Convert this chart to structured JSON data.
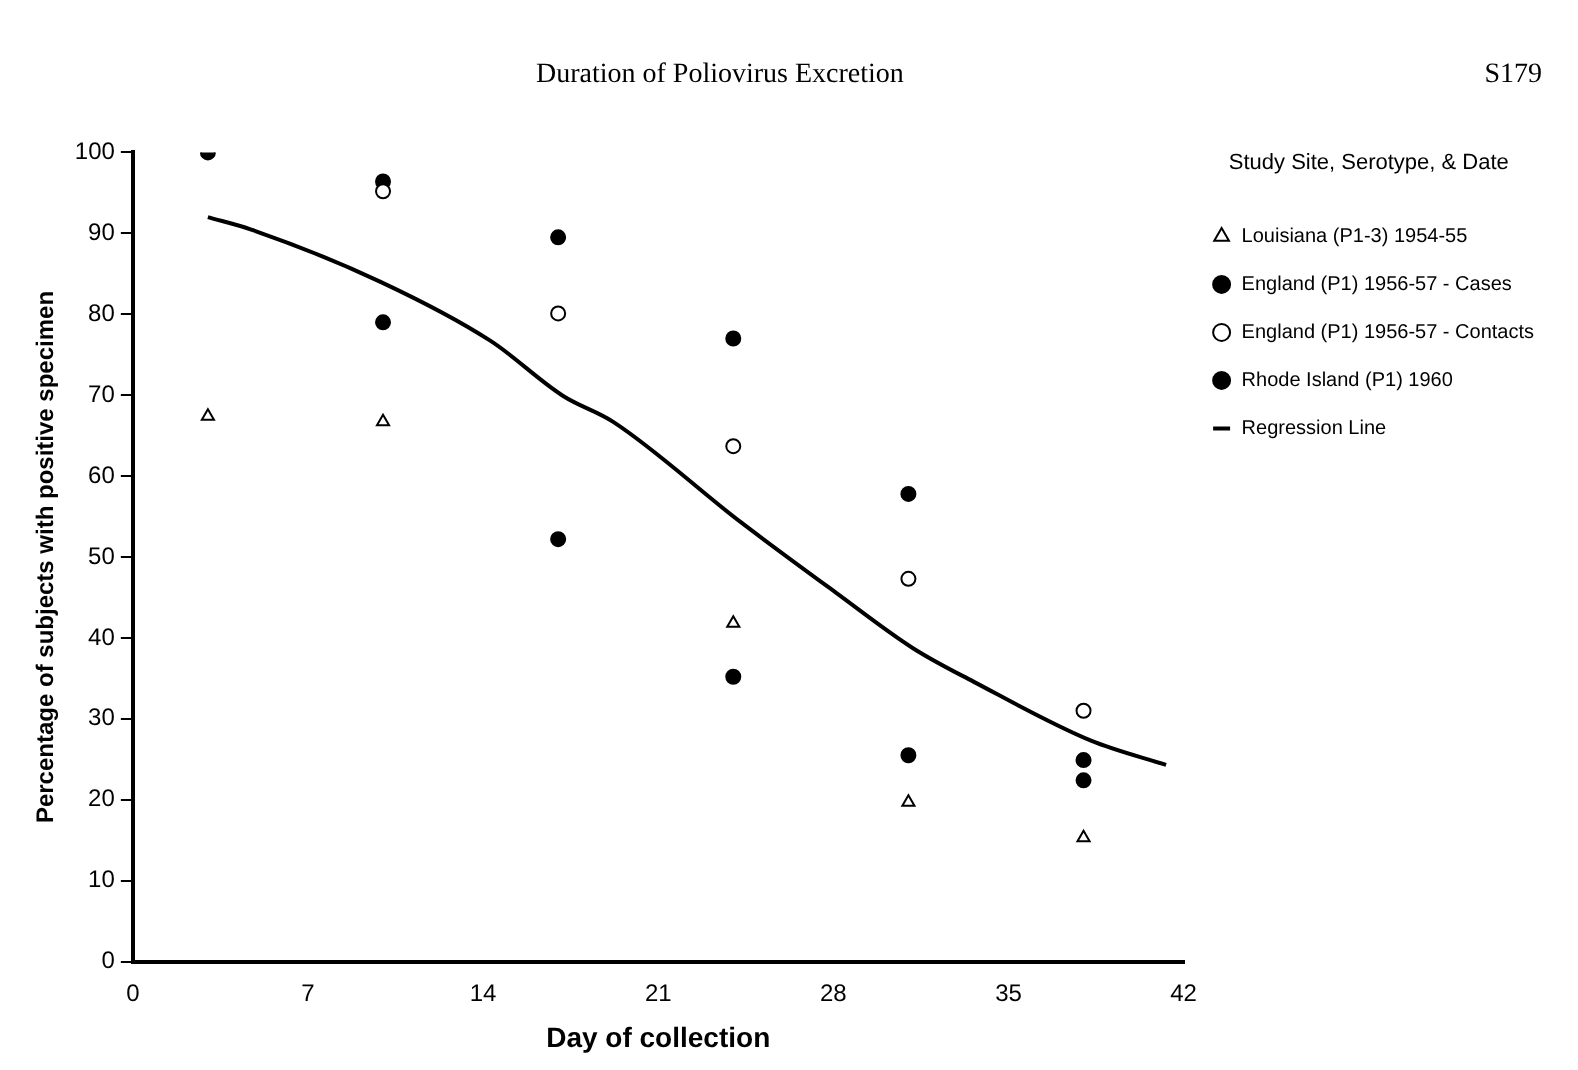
{
  "chart_data": {
    "type": "scatter",
    "title": "Duration of Poliovirus Excretion",
    "annotations": [
      "S179"
    ],
    "xlabel": "Day of collection",
    "ylabel": "Percentage of subjects with positive specimen",
    "legend_title": "Study Site, Serotype, & Date",
    "legend": "top right",
    "grid": false,
    "xlim": [
      0,
      42
    ],
    "xticks": [
      0,
      7,
      14,
      21,
      28,
      35,
      42
    ],
    "ylim": [
      0,
      100
    ],
    "yticks": [
      0,
      10,
      20,
      30,
      40,
      50,
      60,
      70,
      80,
      90,
      100
    ],
    "x": [
      3,
      10,
      17,
      24,
      31,
      38
    ],
    "series": [
      {
        "name": "Louisiana (P1-3) 1954-55",
        "color": "#ffffff",
        "marker": "triangle",
        "values": [
          67.4,
          66.7,
          null,
          41.8,
          19.7,
          15.3
        ]
      },
      {
        "name": "England (P1) 1956-57 - Cases",
        "color": "#000000",
        "marker": "circle",
        "values": [
          null,
          79,
          52.2,
          35.2,
          25.5,
          22.4
        ]
      },
      {
        "name": "England (P1) 1956-57 - Contacts",
        "color": "#ffffff",
        "marker": "circle",
        "values": [
          null,
          95.2,
          80.1,
          63.7,
          47.3,
          31
        ]
      },
      {
        "name": "Rhode Island (P1) 1960",
        "color": "#000000",
        "marker": "circle",
        "values": [
          100,
          96.4,
          89.5,
          77,
          57.8,
          24.9
        ]
      },
      {
        "name": "Regression Line",
        "type": "line",
        "color": "#000000",
        "marker": "none",
        "line_style": "solid",
        "x": [
          3,
          4.7,
          9.9,
          14.3,
          17.2,
          19.2,
          24.3,
          28.1,
          31.2,
          33.6,
          38.3,
          41.3
        ],
        "values": [
          92,
          90.5,
          84,
          76.7,
          69.9,
          66.7,
          54.3,
          45.6,
          38.7,
          34.6,
          27.3,
          24.3
        ]
      }
    ]
  }
}
